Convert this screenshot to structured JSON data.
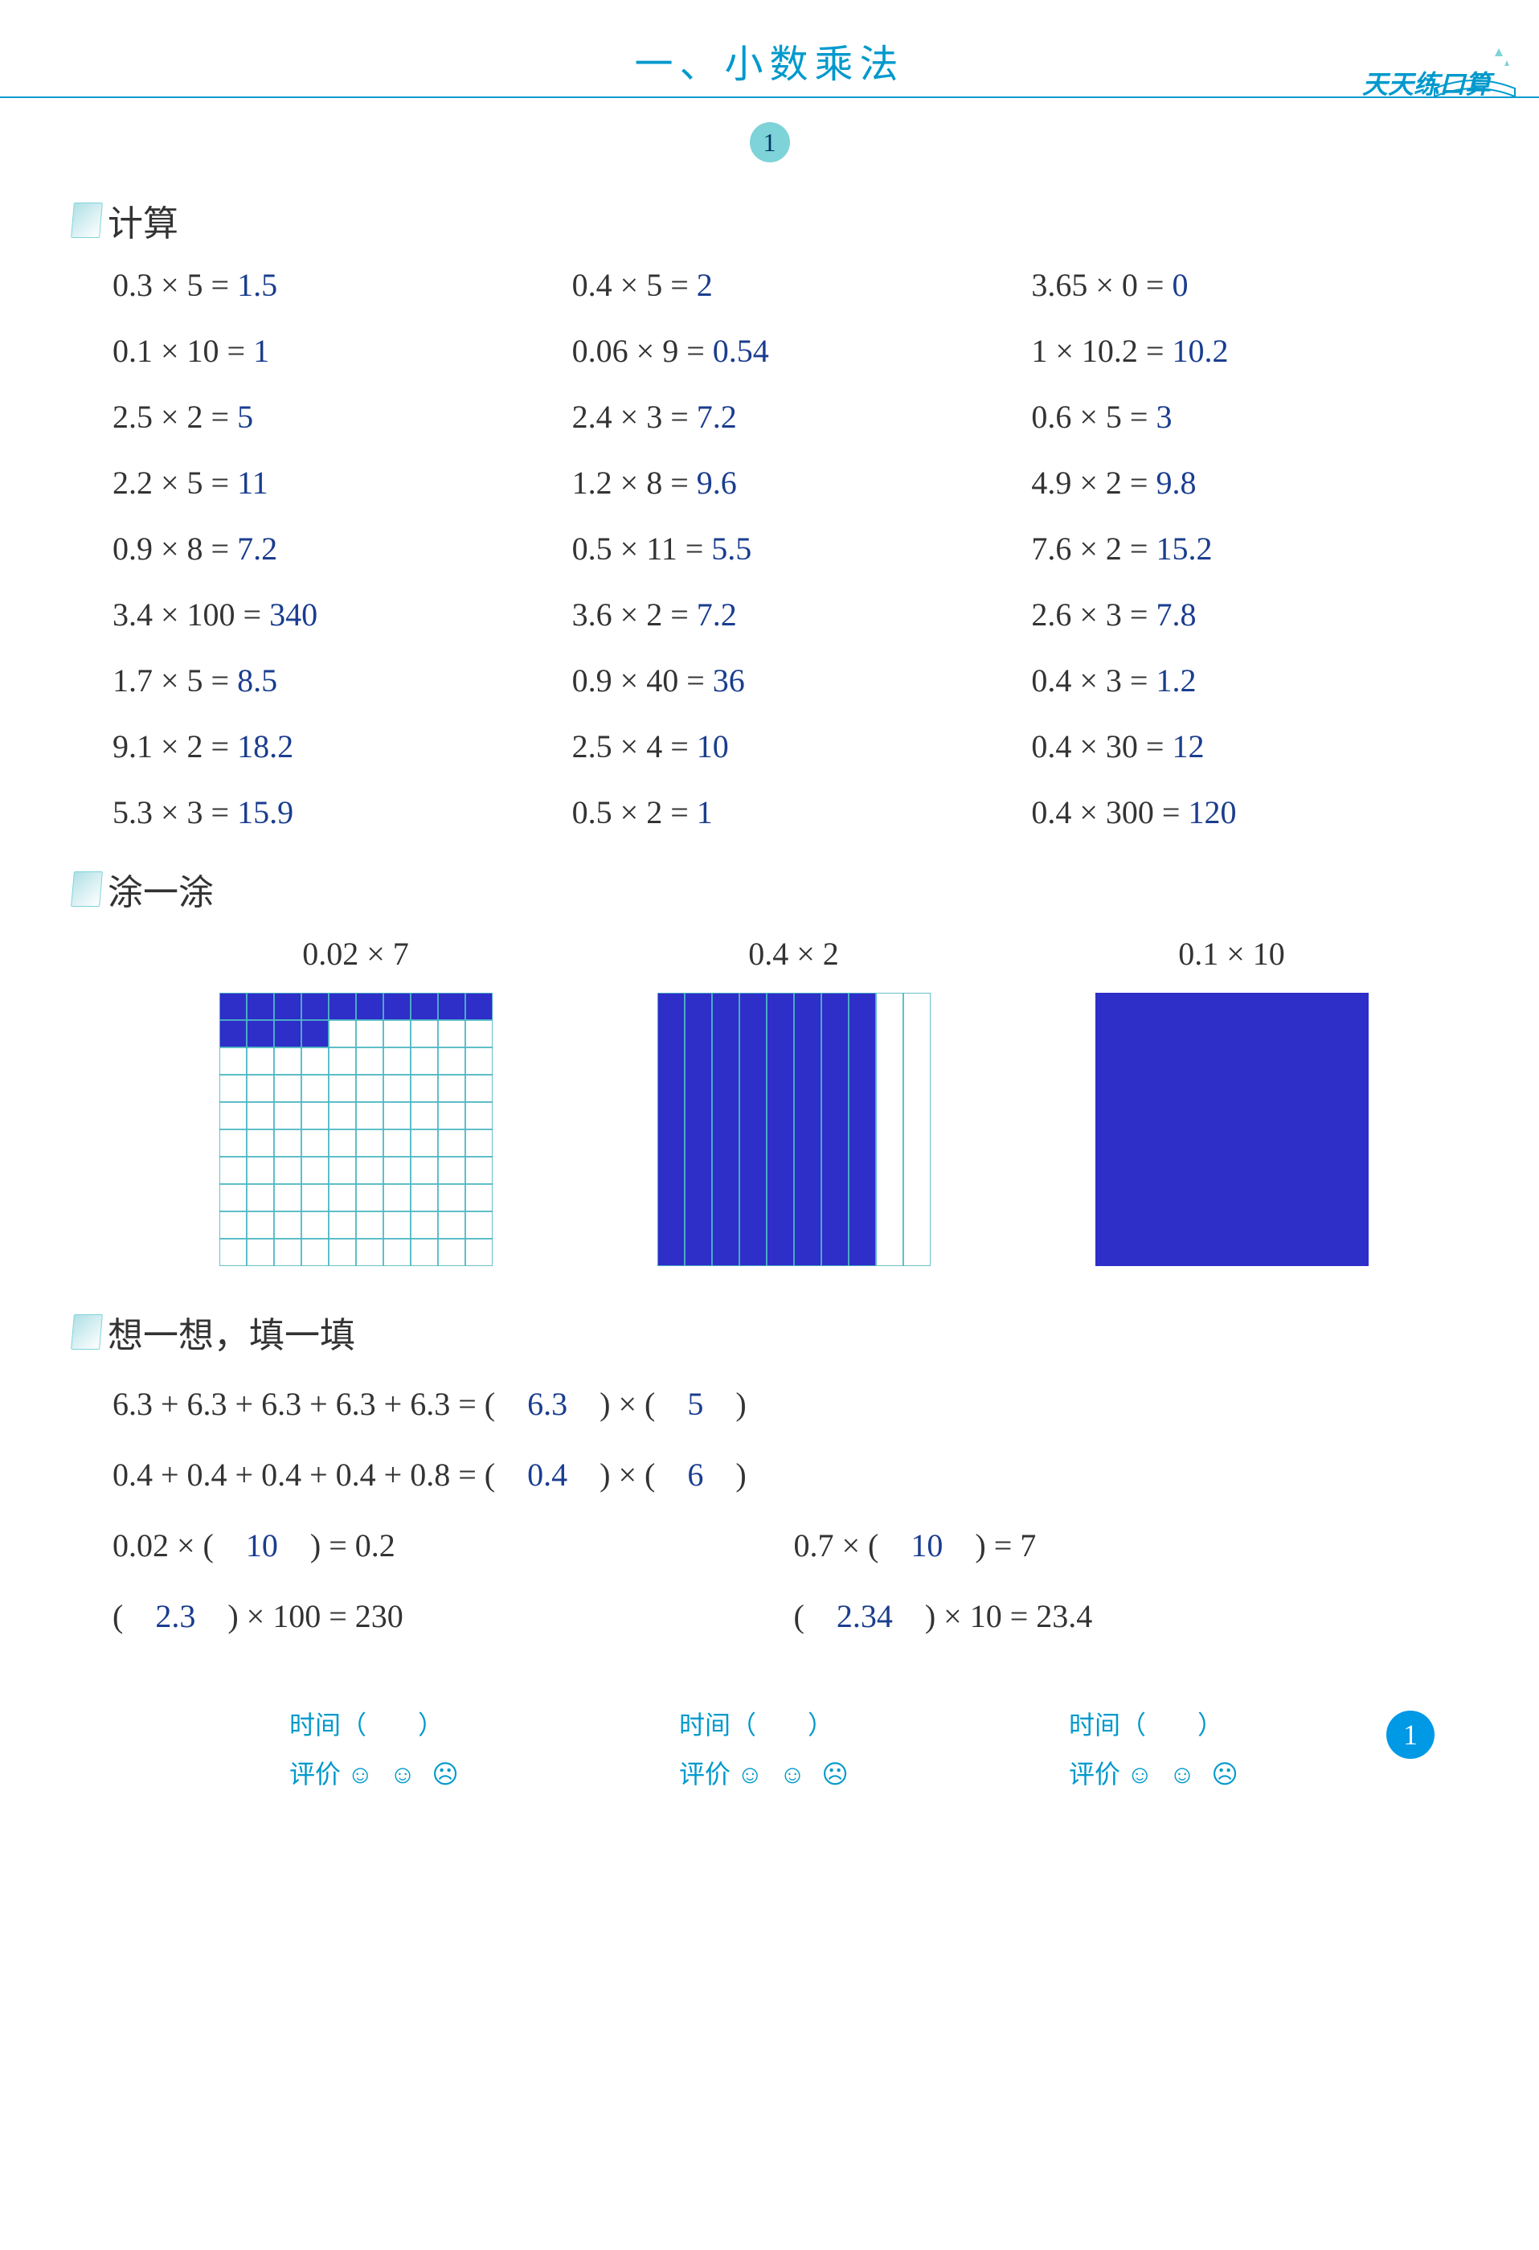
{
  "header": {
    "title": "一、小数乘法",
    "brand": "天天练口算",
    "page_badge": "1"
  },
  "sections": {
    "calc_title": "计算",
    "shade_title": "涂一涂",
    "fill_title": "想一想，填一填"
  },
  "calc": [
    {
      "p": "0.3 × 5 =",
      "a": "1.5"
    },
    {
      "p": "0.4 × 5 =",
      "a": "2"
    },
    {
      "p": "3.65 × 0 =",
      "a": "0"
    },
    {
      "p": "0.1 × 10 =",
      "a": "1"
    },
    {
      "p": "0.06 × 9 =",
      "a": "0.54"
    },
    {
      "p": "1 × 10.2 =",
      "a": "10.2"
    },
    {
      "p": "2.5 × 2 =",
      "a": "5"
    },
    {
      "p": "2.4 × 3 =",
      "a": "7.2"
    },
    {
      "p": "0.6 × 5 =",
      "a": "3"
    },
    {
      "p": "2.2 × 5 =",
      "a": "11"
    },
    {
      "p": "1.2 × 8 =",
      "a": "9.6"
    },
    {
      "p": "4.9 × 2 =",
      "a": "9.8"
    },
    {
      "p": "0.9 × 8 =",
      "a": "7.2"
    },
    {
      "p": "0.5 × 11 =",
      "a": "5.5"
    },
    {
      "p": "7.6 × 2 =",
      "a": "15.2"
    },
    {
      "p": "3.4 × 100 =",
      "a": "340"
    },
    {
      "p": "3.6 × 2 =",
      "a": "7.2"
    },
    {
      "p": "2.6 × 3 =",
      "a": "7.8"
    },
    {
      "p": "1.7 × 5 =",
      "a": "8.5"
    },
    {
      "p": "0.9 × 40 =",
      "a": "36"
    },
    {
      "p": "0.4 × 3 =",
      "a": "1.2"
    },
    {
      "p": "9.1 × 2 =",
      "a": "18.2"
    },
    {
      "p": "2.5 × 4 =",
      "a": "10"
    },
    {
      "p": "0.4 × 30 =",
      "a": "12"
    },
    {
      "p": "5.3 × 3 =",
      "a": "15.9"
    },
    {
      "p": "0.5 × 2 =",
      "a": "1"
    },
    {
      "p": "0.4 × 300 =",
      "a": "120"
    }
  ],
  "shade": {
    "grid_color": "#4db8c4",
    "fill_color": "#2e2ec9",
    "items": [
      {
        "label": "0.02 × 7",
        "type": "10x10",
        "filled_cells": 14
      },
      {
        "label": "0.4 × 2",
        "type": "10cols",
        "filled_cols": 8
      },
      {
        "label": "0.1 × 10",
        "type": "solid",
        "filled_cols": 10
      }
    ]
  },
  "fill": [
    {
      "full": true,
      "pre": "6.3 + 6.3 + 6.3 + 6.3 + 6.3 = (　",
      "a1": "6.3",
      "mid": "　) × (　",
      "a2": "5",
      "post": "　)"
    },
    {
      "full": true,
      "pre": "0.4 + 0.4 + 0.4 + 0.4 + 0.8 = (　",
      "a1": "0.4",
      "mid": "　) × (　",
      "a2": "6",
      "post": "　)"
    },
    {
      "full": false,
      "pre": "0.02 × (　",
      "a1": "10",
      "mid": "　) = 0.2",
      "a2": "",
      "post": ""
    },
    {
      "full": false,
      "pre": "0.7 × (　",
      "a1": "10",
      "mid": "　) = 7",
      "a2": "",
      "post": ""
    },
    {
      "full": false,
      "pre": "(　",
      "a1": "2.3",
      "mid": "　) × 100 = 230",
      "a2": "",
      "post": ""
    },
    {
      "full": false,
      "pre": "(　",
      "a1": "2.34",
      "mid": "　) × 10 = 23.4",
      "a2": "",
      "post": ""
    }
  ],
  "footer": {
    "time_label": "时间（　　）",
    "rating_label": "评价",
    "smileys": "☺ ☺ ☹",
    "page_number": "1"
  },
  "colors": {
    "title_color": "#0099cc",
    "answer_color": "#1a3d8f",
    "text_color": "#333333",
    "badge_bg": "#7dd3d8",
    "page_badge_bg": "#0099e6"
  }
}
